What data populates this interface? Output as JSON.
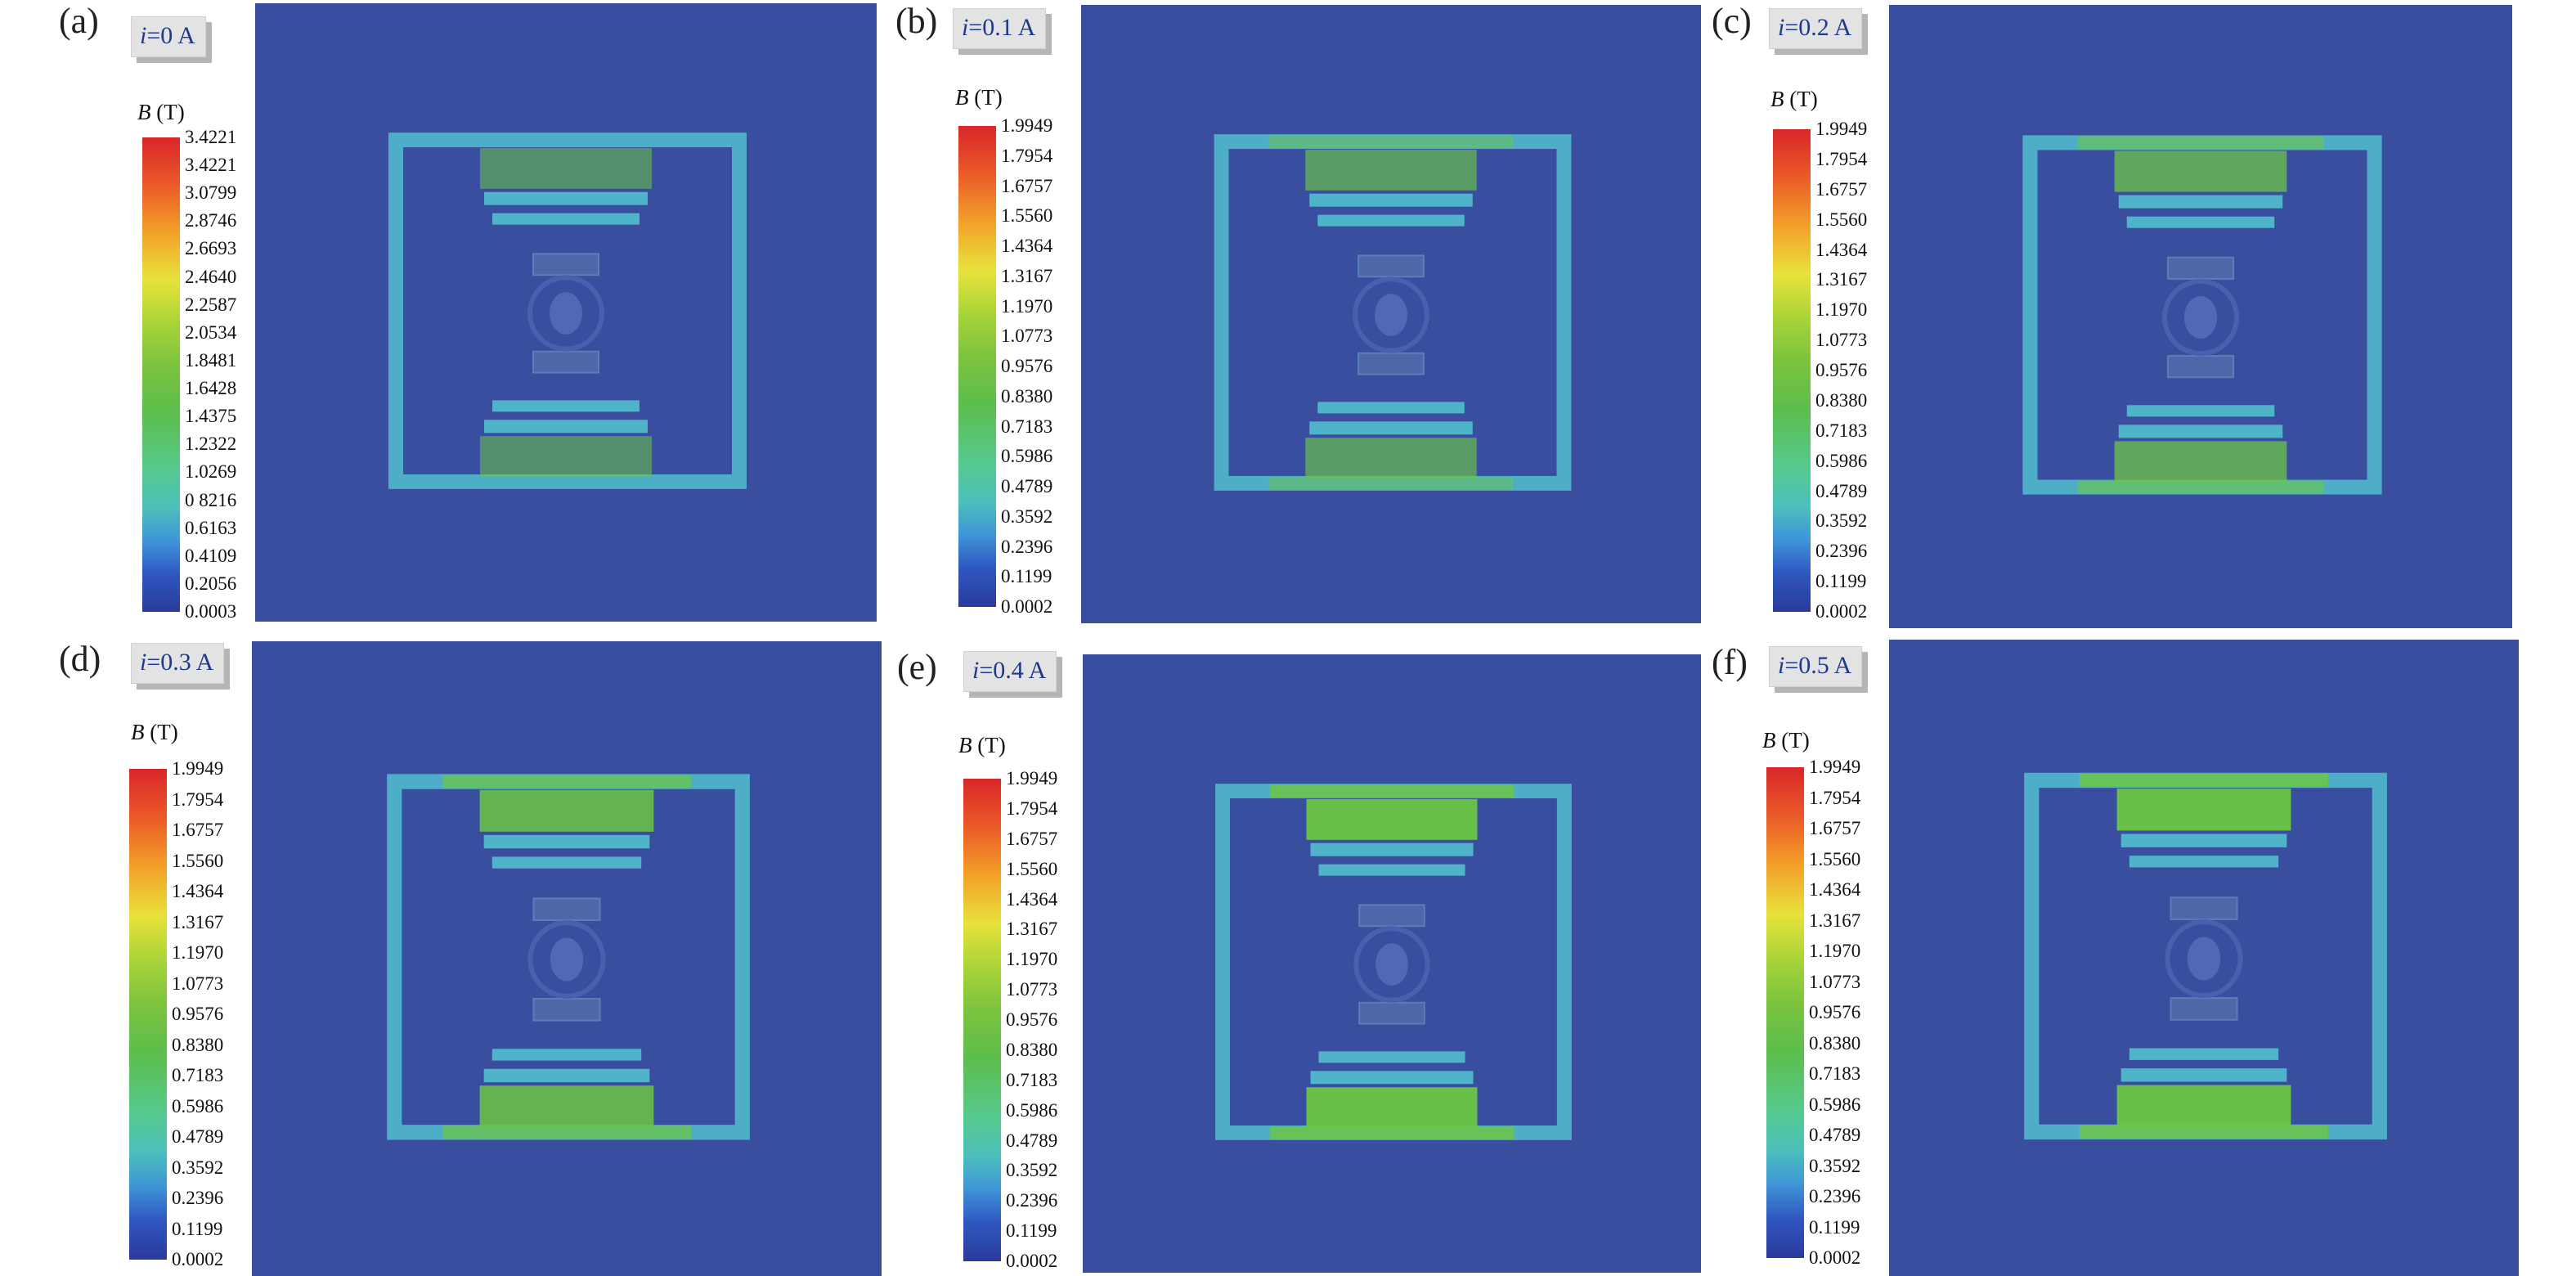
{
  "field_title": "B",
  "field_unit": "(T)",
  "panels": [
    {
      "letter": "(a)",
      "current": "=0 A",
      "ticks": [
        "3.4221",
        "3.4221",
        "3.0799",
        "2.8746",
        "2.6693",
        "2.4640",
        "2.2587",
        "2.0534",
        "1.8481",
        "1.6428",
        "1.4375",
        "1.2322",
        "1.0269",
        "0 8216",
        "0.6163",
        "0.4109",
        "0.2056",
        "0.0003"
      ]
    },
    {
      "letter": "(b)",
      "current": "=0.1 A",
      "ticks": [
        "1.9949",
        "1.7954",
        "1.6757",
        "1.5560",
        "1.4364",
        "1.3167",
        "1.1970",
        "1.0773",
        "0.9576",
        "0.8380",
        "0.7183",
        "0.5986",
        "0.4789",
        "0.3592",
        "0.2396",
        "0.1199",
        "0.0002"
      ]
    },
    {
      "letter": "(c)",
      "current": "=0.2 A",
      "ticks": [
        "1.9949",
        "1.7954",
        "1.6757",
        "1.5560",
        "1.4364",
        "1.3167",
        "1.1970",
        "1.0773",
        "0.9576",
        "0.8380",
        "0.7183",
        "0.5986",
        "0.4789",
        "0.3592",
        "0.2396",
        "0.1199",
        "0.0002"
      ]
    },
    {
      "letter": "(d)",
      "current": "=0.3 A",
      "ticks": [
        "1.9949",
        "1.7954",
        "1.6757",
        "1.5560",
        "1.4364",
        "1.3167",
        "1.1970",
        "1.0773",
        "0.9576",
        "0.8380",
        "0.7183",
        "0.5986",
        "0.4789",
        "0.3592",
        "0.2396",
        "0.1199",
        "0.0002"
      ]
    },
    {
      "letter": "(e)",
      "current": "=0.4 A",
      "ticks": [
        "1.9949",
        "1.7954",
        "1.6757",
        "1.5560",
        "1.4364",
        "1.3167",
        "1.1970",
        "1.0773",
        "0.9576",
        "0.8380",
        "0.7183",
        "0.5986",
        "0.4789",
        "0.3592",
        "0.2396",
        "0.1199",
        "0.0002"
      ]
    },
    {
      "letter": "(f)",
      "current": "=0.5 A",
      "ticks": [
        "1.9949",
        "1.7954",
        "1.6757",
        "1.5560",
        "1.4364",
        "1.3167",
        "1.1970",
        "1.0773",
        "0.9576",
        "0.8380",
        "0.7183",
        "0.5986",
        "0.4789",
        "0.3592",
        "0.2396",
        "0.1199",
        "0.0002"
      ]
    }
  ],
  "colors": {
    "background_field": "#3a4ea0",
    "core_frame": "#4fb3c9",
    "saturated": "#6cc645"
  }
}
